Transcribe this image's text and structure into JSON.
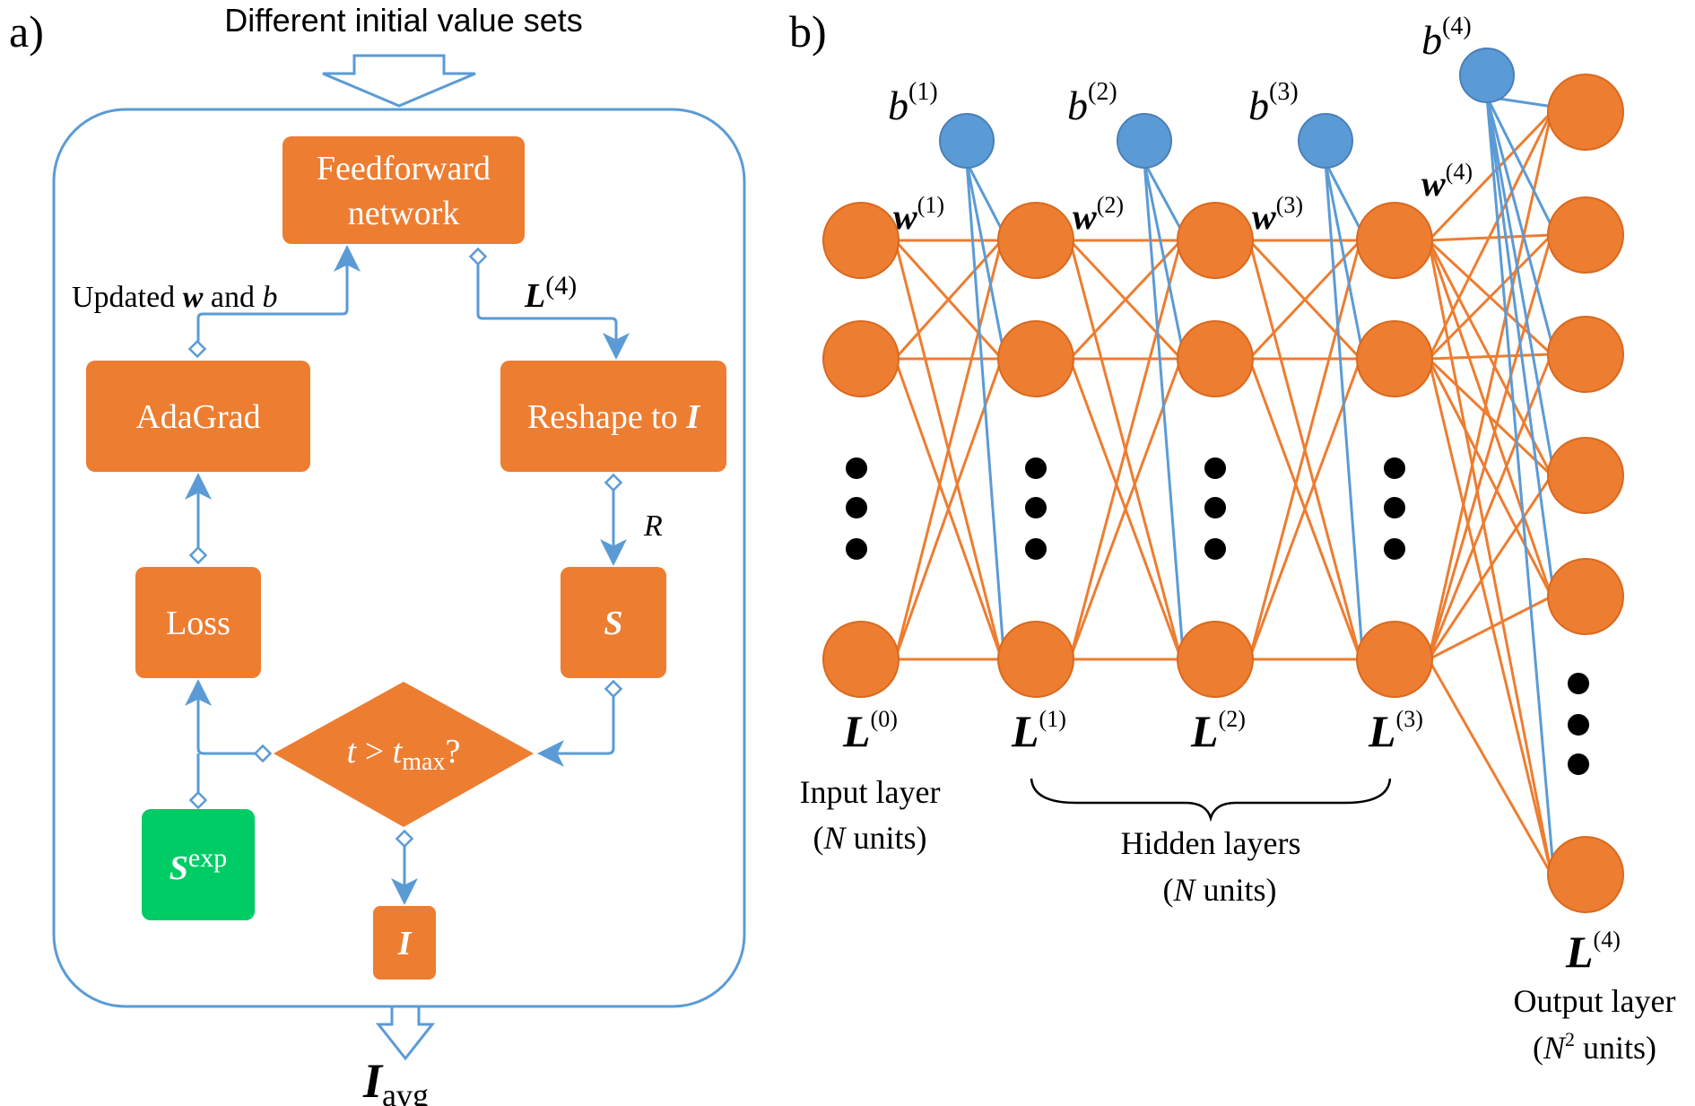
{
  "colors": {
    "orange": "#ED7D31",
    "orange_stroke": "#D9691E",
    "blue": "#5B9BD5",
    "blue_stroke": "#4A7FB8",
    "green": "#00CC66",
    "black": "#000000",
    "white": "#FFFFFF"
  },
  "panel_a": {
    "label": "a)",
    "top_caption": "Different initial value sets",
    "boxes": {
      "feedforward_line1": "Feedforward",
      "feedforward_line2": "network",
      "adagrad": "AdaGrad",
      "reshape_prefix": "Reshape to ",
      "reshape_symbol": "I",
      "loss": "Loss",
      "s": "S",
      "s_exp_base": "S",
      "s_exp_sup": "exp",
      "decision_t": "t",
      "decision_gt": " > ",
      "decision_tmax": "t",
      "decision_tmax_sub": "max",
      "decision_q": "?",
      "output_i": "I"
    },
    "labels": {
      "updated_prefix": "Updated ",
      "updated_w": "w",
      "updated_and": " and ",
      "updated_b": "b",
      "l4_base": "L",
      "l4_sup": "(4)",
      "r": "R"
    },
    "result_base": "I",
    "result_sub": "avg"
  },
  "panel_b": {
    "label": "b)",
    "biases": [
      {
        "base": "b",
        "sup": "(1)"
      },
      {
        "base": "b",
        "sup": "(2)"
      },
      {
        "base": "b",
        "sup": "(3)"
      },
      {
        "base": "b",
        "sup": "(4)"
      }
    ],
    "weights": [
      {
        "base": "w",
        "sup": "(1)"
      },
      {
        "base": "w",
        "sup": "(2)"
      },
      {
        "base": "w",
        "sup": "(3)"
      },
      {
        "base": "w",
        "sup": "(4)"
      }
    ],
    "layers": [
      {
        "base": "L",
        "sup": "(0)"
      },
      {
        "base": "L",
        "sup": "(1)"
      },
      {
        "base": "L",
        "sup": "(2)"
      },
      {
        "base": "L",
        "sup": "(3)"
      },
      {
        "base": "L",
        "sup": "(4)"
      }
    ],
    "input_caption_line1": "Input layer",
    "input_caption_n": "N",
    "input_caption_rest": " units)",
    "input_caption_open": "(",
    "hidden_caption_line1": "Hidden layers",
    "hidden_caption_open": "(",
    "hidden_caption_n": "N",
    "hidden_caption_rest": " units)",
    "output_caption_line1": "Output layer",
    "output_caption_open": "(",
    "output_caption_n": "N",
    "output_caption_sup": "2",
    "output_caption_rest": " units)"
  }
}
